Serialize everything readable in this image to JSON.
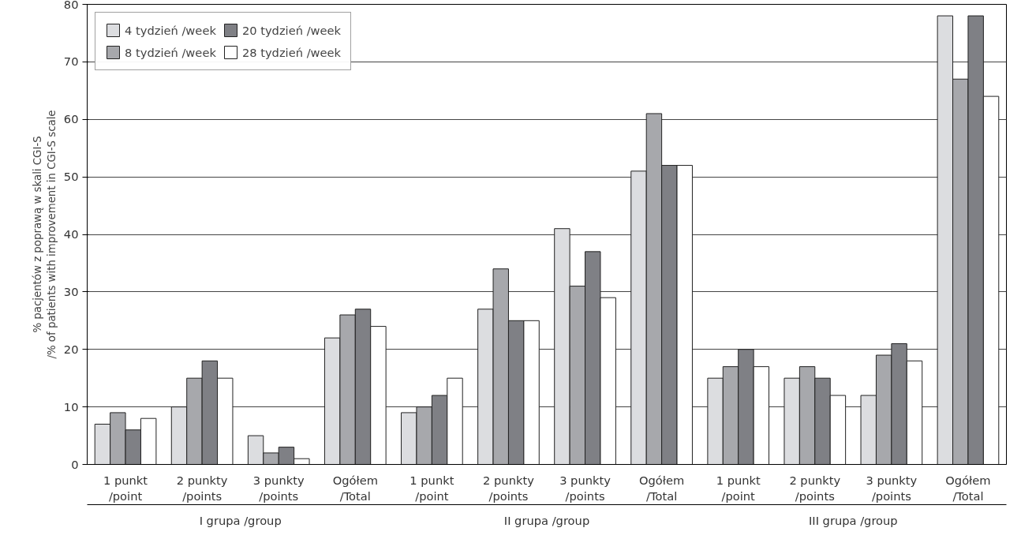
{
  "chart_data": {
    "type": "bar",
    "ylabel": "% pacjentów z poprawą w skali CGI-S\n/% of patients with improvement in CGI-S scale",
    "categories": [
      "1 punkt\n/point",
      "2 punkty\n/points",
      "3 punkty\n/points",
      "Ogółem\n/Total",
      "1 punkt\n/point",
      "2 punkty\n/points",
      "3 punkty\n/points",
      "Ogółem\n/Total",
      "1 punkt\n/point",
      "2 punkty\n/points",
      "3 punkty\n/points",
      "Ogółem\n/Total"
    ],
    "series": [
      {
        "name": "4 tydzień /week",
        "color": "#dcdde0",
        "values": [
          7,
          10,
          5,
          22,
          9,
          27,
          41,
          51,
          15,
          15,
          12,
          78
        ]
      },
      {
        "name": "8 tydzień /week",
        "color": "#a7a8ac",
        "values": [
          9,
          15,
          2,
          26,
          10,
          34,
          31,
          61,
          17,
          17,
          19,
          67
        ]
      },
      {
        "name": "20 tydzień /week",
        "color": "#7f8085",
        "values": [
          6,
          18,
          3,
          27,
          12,
          25,
          37,
          52,
          20,
          15,
          21,
          78
        ]
      },
      {
        "name": "28 tydzień /week",
        "color": "#ffffff",
        "values": [
          8,
          15,
          1,
          24,
          15,
          25,
          29,
          52,
          17,
          12,
          18,
          64
        ]
      }
    ],
    "annotations": [
      "I grupa /group",
      "II grupa /group",
      "III grupa /group"
    ],
    "ylim": [
      0,
      80
    ],
    "yticks": [
      0,
      10,
      20,
      30,
      40,
      50,
      60,
      70,
      80
    ],
    "grid": "y",
    "legend": "top left"
  }
}
